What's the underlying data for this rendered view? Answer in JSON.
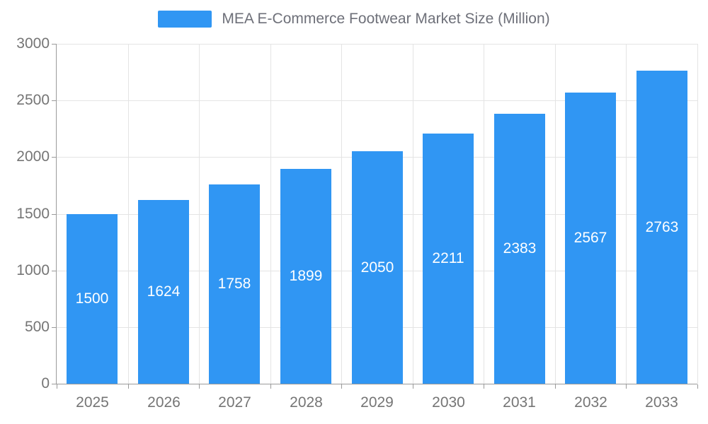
{
  "chart_data": {
    "type": "bar",
    "title": "MEA E-Commerce Footwear Market Size (Million)",
    "categories": [
      "2025",
      "2026",
      "2027",
      "2028",
      "2029",
      "2030",
      "2031",
      "2032",
      "2033"
    ],
    "values": [
      1500,
      1624,
      1758,
      1899,
      2050,
      2211,
      2383,
      2567,
      2763
    ],
    "xlabel": "",
    "ylabel": "",
    "ylim": [
      0,
      3000
    ],
    "ytick_step": 500,
    "ytick_labels": [
      "0",
      "500",
      "1000",
      "1500",
      "2000",
      "2500",
      "3000"
    ],
    "legend_position": "top-center",
    "grid": true,
    "colors": {
      "bar": "#3096f3",
      "bar_value_label": "#ffffff",
      "axis_line": "#9a9a9a",
      "grid_line": "#e4e4e4",
      "tick_text": "#757575",
      "title_text": "#6e7079"
    }
  }
}
